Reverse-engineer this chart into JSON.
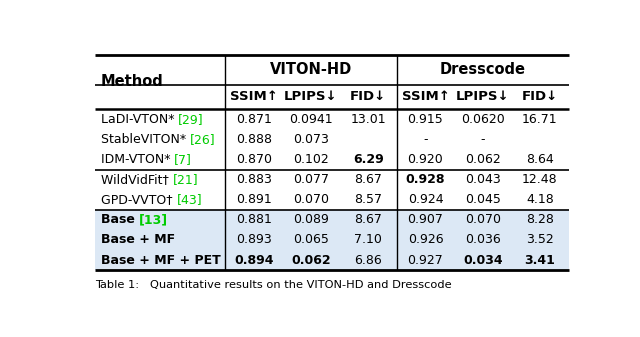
{
  "group1_header": "VITON-HD",
  "group2_header": "Dresscode",
  "col_headers": [
    "SSIM↑",
    "LPIPS↓",
    "FID↓",
    "SSIM↑",
    "LPIPS↓",
    "FID↓"
  ],
  "method_col_header": "Method",
  "rows": [
    {
      "method_parts": [
        {
          "text": "LaDI-VTON* ",
          "color": "#000000",
          "bold": false
        },
        {
          "text": "[29]",
          "color": "#00cc00",
          "bold": false
        }
      ],
      "values": [
        "0.871",
        "0.0941",
        "13.01",
        "0.915",
        "0.0620",
        "16.71"
      ],
      "bold": [
        false,
        false,
        false,
        false,
        false,
        false
      ],
      "group": "asterisk"
    },
    {
      "method_parts": [
        {
          "text": "StableVITON* ",
          "color": "#000000",
          "bold": false
        },
        {
          "text": "[26]",
          "color": "#00cc00",
          "bold": false
        }
      ],
      "values": [
        "0.888",
        "0.073",
        "",
        "-",
        "-",
        ""
      ],
      "bold": [
        false,
        false,
        false,
        false,
        false,
        false
      ],
      "group": "asterisk"
    },
    {
      "method_parts": [
        {
          "text": "IDM-VTON* ",
          "color": "#000000",
          "bold": false
        },
        {
          "text": "[7]",
          "color": "#00cc00",
          "bold": false
        }
      ],
      "values": [
        "0.870",
        "0.102",
        "6.29",
        "0.920",
        "0.062",
        "8.64"
      ],
      "bold": [
        false,
        false,
        true,
        false,
        false,
        false
      ],
      "group": "asterisk"
    },
    {
      "method_parts": [
        {
          "text": "WildVidFit† ",
          "color": "#000000",
          "bold": false
        },
        {
          "text": "[21]",
          "color": "#00cc00",
          "bold": false
        }
      ],
      "values": [
        "0.883",
        "0.077",
        "8.67",
        "0.928",
        "0.043",
        "12.48"
      ],
      "bold": [
        false,
        false,
        false,
        true,
        false,
        false
      ],
      "group": "dagger"
    },
    {
      "method_parts": [
        {
          "text": "GPD-VVTO† ",
          "color": "#000000",
          "bold": false
        },
        {
          "text": "[43]",
          "color": "#00cc00",
          "bold": false
        }
      ],
      "values": [
        "0.891",
        "0.070",
        "8.57",
        "0.924",
        "0.045",
        "4.18"
      ],
      "bold": [
        false,
        false,
        false,
        false,
        false,
        false
      ],
      "group": "dagger"
    },
    {
      "method_parts": [
        {
          "text": "Base ",
          "color": "#000000",
          "bold": true
        },
        {
          "text": "[13]",
          "color": "#00cc00",
          "bold": true
        }
      ],
      "values": [
        "0.881",
        "0.089",
        "8.67",
        "0.907",
        "0.070",
        "8.28"
      ],
      "bold": [
        false,
        false,
        false,
        false,
        false,
        false
      ],
      "group": "ours"
    },
    {
      "method_parts": [
        {
          "text": "Base + MF",
          "color": "#000000",
          "bold": true
        }
      ],
      "values": [
        "0.893",
        "0.065",
        "7.10",
        "0.926",
        "0.036",
        "3.52"
      ],
      "bold": [
        false,
        false,
        false,
        false,
        false,
        false
      ],
      "group": "ours"
    },
    {
      "method_parts": [
        {
          "text": "Base + MF + PET",
          "color": "#000000",
          "bold": true
        }
      ],
      "values": [
        "0.894",
        "0.062",
        "6.86",
        "0.927",
        "0.034",
        "3.41"
      ],
      "bold": [
        true,
        true,
        false,
        false,
        true,
        true
      ],
      "group": "ours"
    }
  ],
  "bg_ours": "#dce8f5",
  "bg_normal": "#ffffff",
  "separator_rows_after": [
    2,
    4
  ],
  "caption": "Table 1:   Quantitative results on the VITON-HD and Dresscode"
}
